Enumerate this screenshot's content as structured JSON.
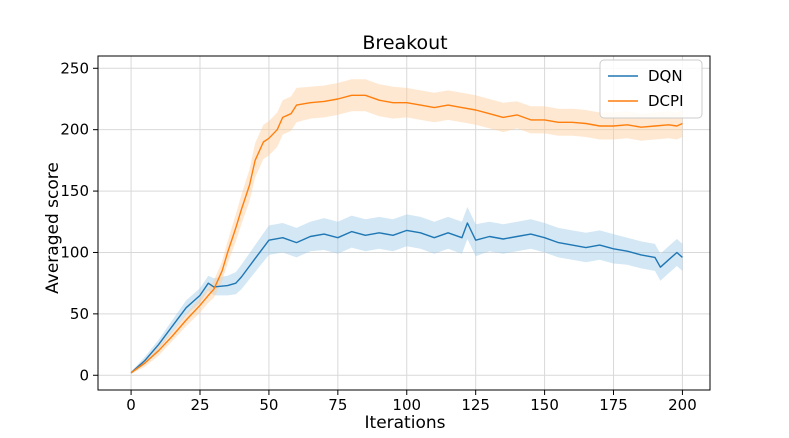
{
  "chart_data": {
    "type": "line",
    "title": "Breakout",
    "xlabel": "Iterations",
    "ylabel": "Averaged score",
    "xlim": [
      -12,
      210
    ],
    "ylim": [
      -12,
      260
    ],
    "xticks": [
      0,
      25,
      50,
      75,
      100,
      125,
      150,
      175,
      200
    ],
    "yticks": [
      0,
      50,
      100,
      150,
      200,
      250
    ],
    "grid": true,
    "legend_position": "top-right",
    "series": [
      {
        "name": "DQN",
        "color": "#1f77b4",
        "band_color": "#9ec9e8",
        "x": [
          0,
          5,
          10,
          15,
          20,
          25,
          28,
          30,
          35,
          38,
          40,
          45,
          50,
          55,
          60,
          65,
          70,
          75,
          80,
          85,
          90,
          95,
          100,
          105,
          110,
          115,
          120,
          122,
          125,
          130,
          135,
          140,
          145,
          150,
          155,
          160,
          165,
          170,
          175,
          180,
          185,
          190,
          192,
          195,
          198,
          200
        ],
        "y": [
          2,
          12,
          25,
          40,
          55,
          65,
          75,
          72,
          73,
          75,
          80,
          95,
          110,
          112,
          108,
          113,
          115,
          112,
          117,
          114,
          116,
          114,
          118,
          116,
          112,
          116,
          112,
          124,
          110,
          113,
          111,
          113,
          115,
          112,
          108,
          106,
          104,
          106,
          103,
          101,
          98,
          96,
          88,
          94,
          100,
          96
        ],
        "band": [
          1,
          3,
          4,
          5,
          6,
          6,
          6,
          7,
          8,
          9,
          10,
          11,
          12,
          12,
          12,
          12,
          13,
          13,
          13,
          13,
          13,
          13,
          13,
          13,
          13,
          13,
          13,
          13,
          13,
          12,
          12,
          12,
          12,
          12,
          12,
          12,
          12,
          12,
          12,
          11,
          11,
          11,
          11,
          11,
          11,
          11
        ]
      },
      {
        "name": "DCPI",
        "color": "#ff7f0e",
        "band_color": "#ffcc99",
        "x": [
          0,
          5,
          10,
          15,
          20,
          25,
          28,
          30,
          33,
          35,
          38,
          40,
          43,
          45,
          48,
          50,
          53,
          55,
          58,
          60,
          65,
          70,
          75,
          80,
          85,
          90,
          95,
          100,
          105,
          110,
          115,
          120,
          125,
          130,
          135,
          140,
          145,
          150,
          155,
          160,
          165,
          170,
          175,
          180,
          185,
          190,
          195,
          198,
          200
        ],
        "y": [
          2,
          10,
          20,
          32,
          45,
          57,
          65,
          70,
          85,
          100,
          120,
          135,
          155,
          175,
          190,
          193,
          200,
          210,
          213,
          220,
          222,
          223,
          225,
          228,
          228,
          224,
          222,
          222,
          220,
          218,
          220,
          218,
          216,
          213,
          210,
          212,
          208,
          208,
          206,
          206,
          205,
          203,
          203,
          204,
          202,
          203,
          204,
          203,
          205
        ],
        "band": [
          1,
          3,
          4,
          4,
          5,
          6,
          6,
          7,
          8,
          9,
          11,
          12,
          13,
          14,
          14,
          14,
          14,
          14,
          14,
          14,
          13,
          13,
          13,
          13,
          13,
          13,
          13,
          12,
          12,
          12,
          12,
          12,
          12,
          12,
          12,
          11,
          11,
          11,
          11,
          11,
          11,
          11,
          11,
          11,
          11,
          11,
          11,
          11,
          11
        ]
      }
    ]
  }
}
